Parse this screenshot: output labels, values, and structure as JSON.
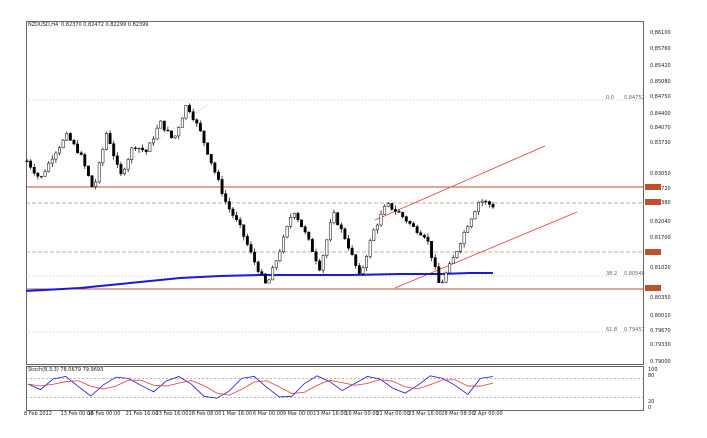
{
  "header": {
    "symbol": "NZDUSD,H4",
    "ohlc": "0.82370 0.82472 0.82299 0.82399"
  },
  "price_axis": {
    "labels": [
      "0.86100",
      "0.85760",
      "0.85420",
      "0.85080",
      "0.84750",
      "0.84400",
      "0.84070",
      "0.83730",
      "0.83050",
      "0.82720",
      "0.82380",
      "0.82040",
      "0.81700",
      "0.81020",
      "0.80350",
      "0.80010",
      "0.79670",
      "0.79330",
      "0.79000"
    ]
  },
  "fib_levels": [
    {
      "ratio": "0.0",
      "price": "0.84752"
    },
    {
      "ratio": "38.2",
      "price": "0.80548"
    },
    {
      "ratio": "61.8",
      "price": "0.79457"
    }
  ],
  "stoch": {
    "label": "Stoch(8,3,3) 78.0679 79.9693",
    "levels": [
      "100",
      "80",
      "20",
      "0"
    ]
  },
  "time_axis": {
    "labels": [
      "8 Feb 2012",
      "13 Feb 00:00",
      "16 Feb 00:00",
      "21 Feb 16:00",
      "23 Feb 16:00",
      "28 Feb 08:00",
      "1 Mar 16:00",
      "6 Mar 00:00",
      "9 Mar 00:00",
      "13 Mar 16:00",
      "16 Mar 00:00",
      "21 Mar 00:00",
      "23 Mar 16:00",
      "28 Mar 08:00",
      "2 Apr 00:00"
    ]
  },
  "colors": {
    "horizontal_line": "#b4562c",
    "channel": "#e63b3b",
    "moving_average": "#1a1adb",
    "stoch_main": "#1a1adb",
    "stoch_signal": "#e63b3b",
    "candle": "#000000"
  },
  "chart_data": {
    "type": "candlestick",
    "series": [
      {
        "name": "NZDUSD,H4",
        "close_path": [
          0.8335,
          0.8295,
          0.835,
          0.839,
          0.835,
          0.827,
          0.84,
          0.83,
          0.837,
          0.8355,
          0.842,
          0.838,
          0.846,
          0.84,
          0.832,
          0.824,
          0.819,
          0.812,
          0.806,
          0.814,
          0.823,
          0.817,
          0.81,
          0.822,
          0.816,
          0.808,
          0.818,
          0.824,
          0.822,
          0.819,
          0.817,
          0.806,
          0.812,
          0.819,
          0.825,
          0.8237
        ]
      }
    ],
    "stochastic": {
      "overbought": 80,
      "oversold": 20,
      "main": [
        62,
        45,
        78,
        86,
        55,
        25,
        60,
        84,
        80,
        58,
        38,
        72,
        86,
        62,
        24,
        18,
        40,
        80,
        86,
        52,
        22,
        24,
        64,
        88,
        70,
        42,
        64,
        86,
        78,
        50,
        34,
        58,
        88,
        80,
        58,
        30,
        80,
        86
      ]
    }
  }
}
